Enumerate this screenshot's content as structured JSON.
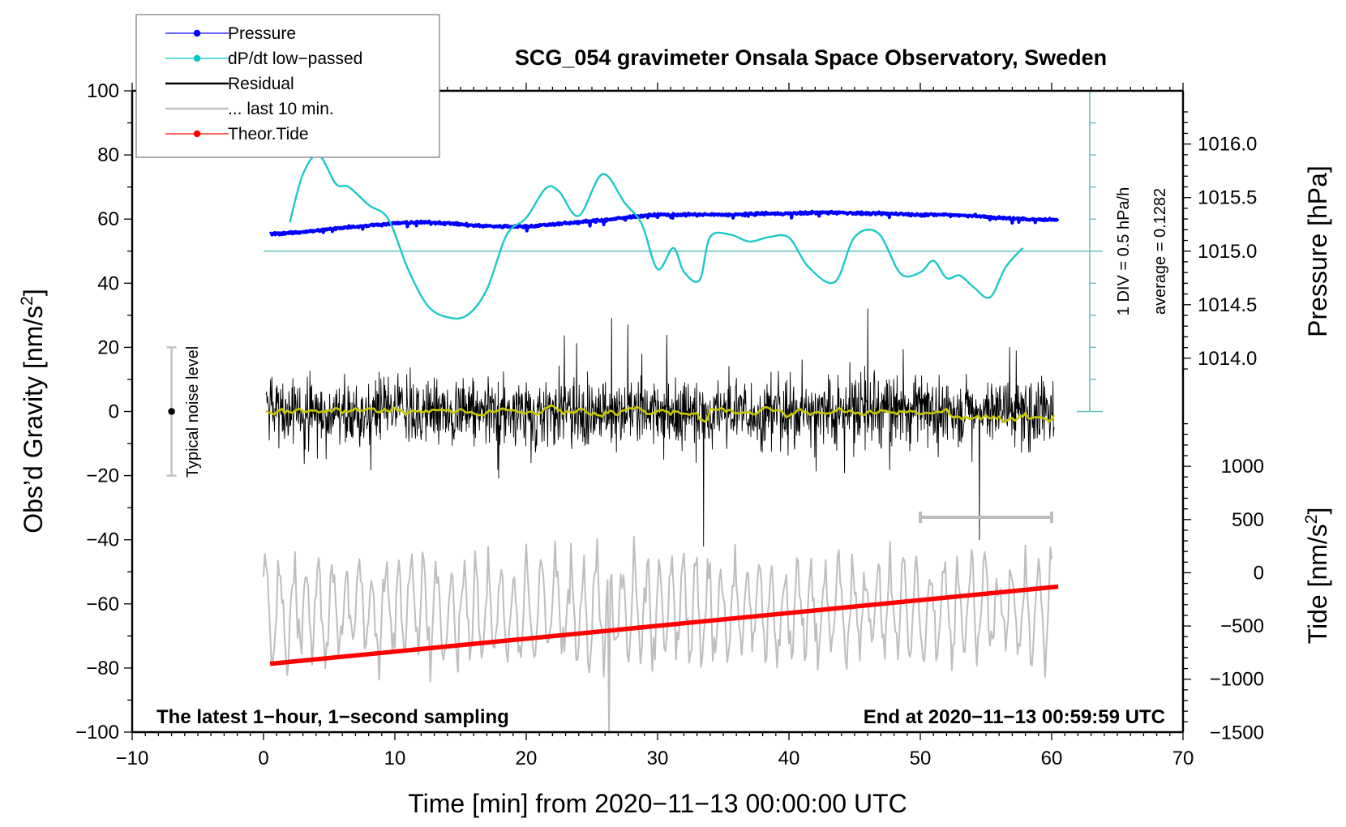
{
  "chart_data": {
    "type": "line",
    "title": "SCG_054 gravimeter Onsala Space Observatory, Sweden",
    "xlabel": "Time [min] from 2020−11−13 00:00:00 UTC",
    "ylabel_left": "Obs’d Gravity [nm/s",
    "ylabel_left_sup": "2",
    "ylabel_left_end": "]",
    "ylabel_right_top": "Pressure [hPa]",
    "ylabel_right_bottom": "Tide [nm/s",
    "ylabel_right_bottom_sup": "2",
    "ylabel_right_bottom_end": "]",
    "xlim": [
      -10,
      70
    ],
    "ylim": [
      -100,
      100
    ],
    "pressure_lim": [
      1013.0,
      1016.5
    ],
    "tide_lim": [
      -1500,
      1500
    ],
    "x_ticks": [
      -10,
      0,
      10,
      20,
      30,
      40,
      50,
      60,
      70
    ],
    "x_tick_labels": [
      "−10",
      "0",
      "10",
      "20",
      "30",
      "40",
      "50",
      "60",
      "70"
    ],
    "y_ticks": [
      100,
      80,
      60,
      40,
      20,
      0,
      -20,
      -40,
      -60,
      -80,
      -100
    ],
    "y_tick_labels": [
      "100",
      "80",
      "60",
      "40",
      "20",
      "0",
      "−20",
      "−40",
      "−60",
      "−80",
      "−100"
    ],
    "pressure_ticks": [
      1016.0,
      1015.5,
      1015.0,
      1014.5,
      1014.0
    ],
    "pressure_tick_labels": [
      "1016.0",
      "1015.5",
      "1015.0",
      "1014.5",
      "1014.0"
    ],
    "tide_ticks": [
      1000,
      500,
      0,
      -500,
      -1000,
      -1500
    ],
    "tide_tick_labels": [
      "1000",
      "500",
      "0",
      "−500",
      "−1000",
      "−1500"
    ],
    "legend": {
      "placement": "top-left",
      "entries": [
        {
          "label": "Pressure",
          "color": "#0000ff",
          "marker": true
        },
        {
          "label": "dP/dt low−passed",
          "color": "#00c8c8",
          "marker": true
        },
        {
          "label": "Residual",
          "color": "#000000",
          "marker": false
        },
        {
          "label": "... last 10 min.",
          "color": "#bebebe",
          "marker": false
        },
        {
          "label": "Theor.Tide",
          "color": "#ff0000",
          "marker": true
        }
      ]
    },
    "colors": {
      "pressure": "#0000ff",
      "dpdt": "#1ec8c8",
      "dpdt_axis": "#66c0bc",
      "residual": "#000000",
      "residual_smooth": "#c8c800",
      "last10": "#bebebe",
      "tide": "#ff0000",
      "noise_bar": "#c0c0c0"
    },
    "series": [
      {
        "name": "Pressure",
        "unit": "hPa",
        "x": [
          0.5,
          2,
          4,
          6,
          8,
          10,
          12,
          14,
          16,
          18,
          20,
          22,
          24,
          26,
          28,
          30,
          32,
          34,
          36,
          38,
          40,
          42,
          44,
          46,
          48,
          50,
          52,
          54,
          56,
          58,
          60.5
        ],
        "values": [
          1015.16,
          1015.17,
          1015.19,
          1015.22,
          1015.24,
          1015.26,
          1015.27,
          1015.26,
          1015.24,
          1015.23,
          1015.23,
          1015.25,
          1015.27,
          1015.29,
          1015.32,
          1015.34,
          1015.34,
          1015.34,
          1015.34,
          1015.35,
          1015.35,
          1015.36,
          1015.36,
          1015.35,
          1015.35,
          1015.34,
          1015.34,
          1015.33,
          1015.31,
          1015.3,
          1015.29
        ]
      },
      {
        "name": "dP/dt low-passed",
        "unit": "hPa/h",
        "zero_level_gravity": 50,
        "div_value_hpa_per_h": 0.5,
        "average": 0.1282,
        "x": [
          2,
          3,
          4.2,
          5.5,
          6.5,
          8,
          9.5,
          11,
          12.5,
          14,
          15.5,
          17,
          18.5,
          20,
          21.5,
          22.5,
          24,
          25.8,
          27.5,
          28.8,
          30,
          31.2,
          32,
          33.2,
          34,
          35.5,
          37,
          38.5,
          40,
          41.5,
          43.5,
          45,
          46.8,
          48.5,
          50,
          51,
          52,
          53,
          54,
          55.3,
          56.5,
          57.8
        ],
        "values": [
          0.45,
          1.2,
          1.5,
          1.05,
          1.0,
          0.72,
          0.5,
          -0.28,
          -0.85,
          -1.03,
          -1.0,
          -0.6,
          0.25,
          0.52,
          0.98,
          0.93,
          0.55,
          1.2,
          0.75,
          0.42,
          -0.28,
          0.05,
          -0.32,
          -0.45,
          0.22,
          0.26,
          0.15,
          0.22,
          0.21,
          -0.25,
          -0.48,
          0.22,
          0.28,
          -0.35,
          -0.33,
          -0.15,
          -0.42,
          -0.38,
          -0.55,
          -0.72,
          -0.25,
          0.05
        ]
      },
      {
        "name": "Residual",
        "unit": "nm/s²",
        "x_range": [
          0.2,
          60.2
        ],
        "typical_range": [
          -20,
          26
        ],
        "notable_spikes": [
          {
            "x": 33.5,
            "value": -42
          },
          {
            "x": 54.5,
            "value": -40
          },
          {
            "x": 46,
            "value": 32
          },
          {
            "x": 26.5,
            "value": 29
          }
        ],
        "smoothed_level": 0
      },
      {
        "name": "... last 10 min.",
        "unit": "nm/s² (expanded time scale)",
        "x_range": [
          0,
          60
        ],
        "level": -62,
        "amplitude": 25,
        "reference_bar": {
          "x_from": 50,
          "x_to": 60,
          "y": -33
        }
      },
      {
        "name": "Theor.Tide",
        "unit": "nm/s²",
        "x": [
          0.5,
          60.5
        ],
        "values": [
          -855,
          -130
        ]
      }
    ],
    "annotations": {
      "noise_level_label": "Typical noise level",
      "noise_level_range": [
        -20,
        20
      ],
      "noise_level_x": -7,
      "div_label": "1 DIV = 0.5 hPa/h",
      "average_label": "average = 0.1282",
      "bottom_left": "The latest 1−hour, 1−second sampling",
      "bottom_right": "End at 2020−11−13 00:59:59 UTC"
    },
    "grid": false
  }
}
